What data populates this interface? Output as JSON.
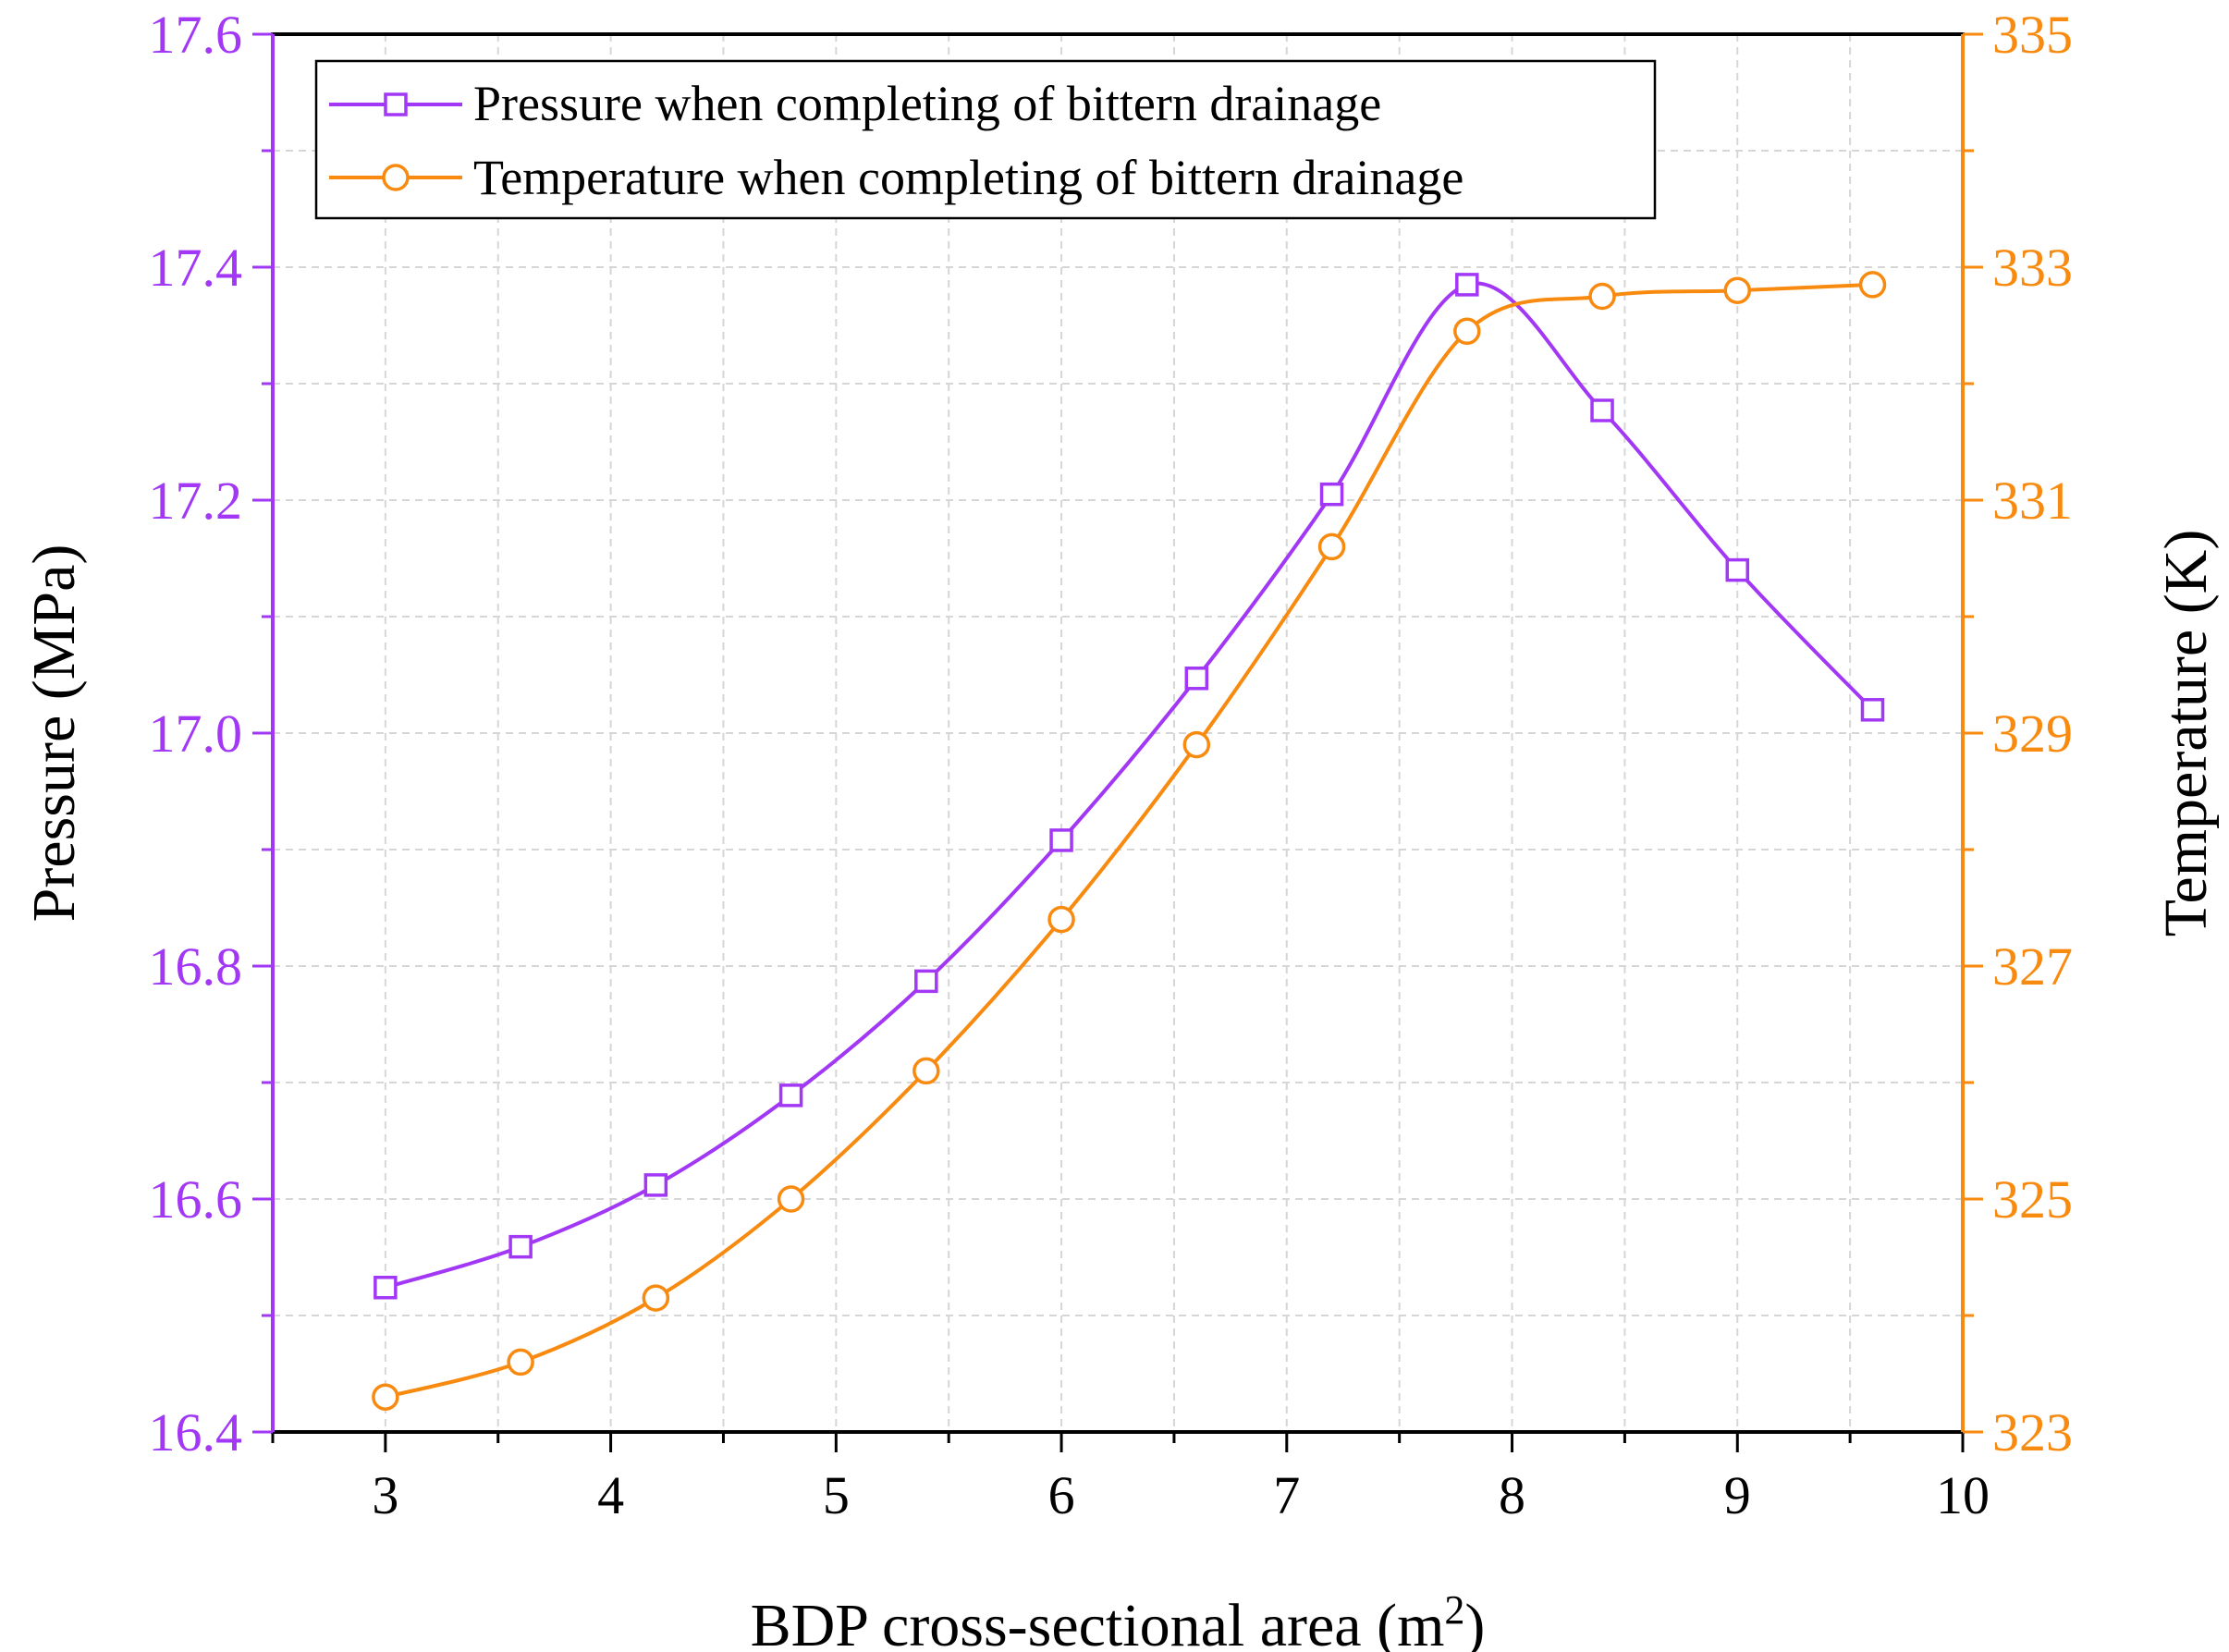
{
  "chart_data": {
    "type": "line",
    "xlabel_main": "BDP cross-sectional area (m",
    "xlabel_sup": "2",
    "xlabel_end": ")",
    "ylabel_left": "Pressure (MPa)",
    "ylabel_right": "Temperature (K)",
    "xlim": [
      2.5,
      10
    ],
    "ylim_left": [
      16.4,
      17.6
    ],
    "ylim_right": [
      323,
      335
    ],
    "x_ticks": [
      3,
      4,
      5,
      6,
      7,
      8,
      9,
      10
    ],
    "y_left_ticks": [
      "16.4",
      "16.6",
      "16.8",
      "17.0",
      "17.2",
      "17.4",
      "17.6"
    ],
    "y_right_ticks": [
      "323",
      "325",
      "327",
      "329",
      "331",
      "333",
      "335"
    ],
    "grid": true,
    "legend_position": "top-left",
    "colors": {
      "pressure": "#A238F5",
      "temperature": "#F78A0F",
      "axis": "#000000",
      "grid": "#D6D6D6"
    },
    "series": [
      {
        "name": "Pressure when completing of bittern drainage",
        "axis": "left",
        "marker": "square",
        "x": [
          3.0,
          3.6,
          4.2,
          4.8,
          5.4,
          6.0,
          6.6,
          7.2,
          7.8,
          8.4,
          9.0,
          9.6
        ],
        "values": [
          16.524,
          16.559,
          16.612,
          16.689,
          16.787,
          16.908,
          17.047,
          17.205,
          17.385,
          17.277,
          17.14,
          17.02
        ]
      },
      {
        "name": "Temperature when completing of bittern drainage",
        "axis": "right",
        "marker": "circle",
        "x": [
          3.0,
          3.6,
          4.2,
          4.8,
          5.4,
          6.0,
          6.6,
          7.2,
          7.8,
          8.4,
          9.0,
          9.6
        ],
        "values": [
          323.3,
          323.6,
          324.15,
          325.0,
          326.1,
          327.4,
          328.9,
          330.6,
          332.45,
          332.75,
          332.8,
          332.85
        ]
      }
    ]
  }
}
